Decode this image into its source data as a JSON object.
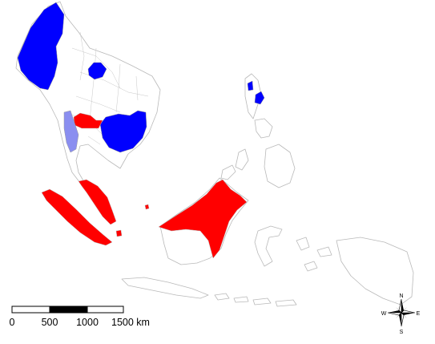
{
  "colors": {
    "dark_blue": "#0000ff",
    "red": "#ff0000",
    "light_blue": "#8a8ef0",
    "border": "#b9b9b9"
  },
  "scale_bar": {
    "ticks": [
      "0",
      "500",
      "1000",
      "1500 km"
    ]
  },
  "compass": {
    "icon": "compass-rose-icon",
    "north": "N",
    "south": "S",
    "east": "E",
    "west": "W"
  }
}
